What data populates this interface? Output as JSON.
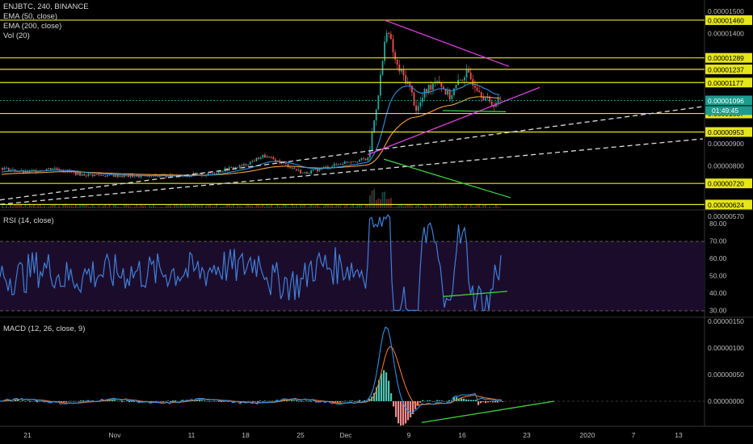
{
  "header": {
    "symbol": "ENJBTC, 240, BINANCE",
    "indicators": [
      "EMA (50, close)",
      "EMA (200, close)",
      "Vol (20)"
    ]
  },
  "rsi": {
    "title": "RSI (14, close)",
    "ticks": [
      "80.00",
      "70.00",
      "60.00",
      "50.00",
      "40.00",
      "30.00"
    ]
  },
  "macd": {
    "title": "MACD (12, 26, close, 9)",
    "ticks": [
      "0.00000150",
      "0.00000100",
      "0.00000050",
      "0.00000000"
    ]
  },
  "countdown": "01:49:45",
  "chart_data": {
    "type": "candlestick",
    "symbol": "ENJBTC",
    "timeframe": "240",
    "exchange": "BINANCE",
    "price_ticks": [
      "0.00001500",
      "0.00001400",
      "0.00000900",
      "0.00000800",
      "0.00000570"
    ],
    "horizontal_levels": [
      "0.00001460",
      "0.00001289",
      "0.00001237",
      "0.00001177",
      "0.00001037",
      "0.00000953",
      "0.00000720",
      "0.00000624"
    ],
    "last_price": "0.00001096",
    "x_ticks": [
      "21",
      "Nov",
      "11",
      "18",
      "25",
      "Dec",
      "9",
      "16",
      "23",
      "2020",
      "7",
      "13"
    ],
    "colors": {
      "up": "#26a69a",
      "down": "#ef5350",
      "ema50": "#2f8fe0",
      "ema200": "#f2a23a",
      "level": "#e6e619",
      "triangle": "#e040e0",
      "trend_green": "#3fd13f",
      "rsi": "#3f7fd6",
      "macd_signal": "#e8732e"
    }
  }
}
